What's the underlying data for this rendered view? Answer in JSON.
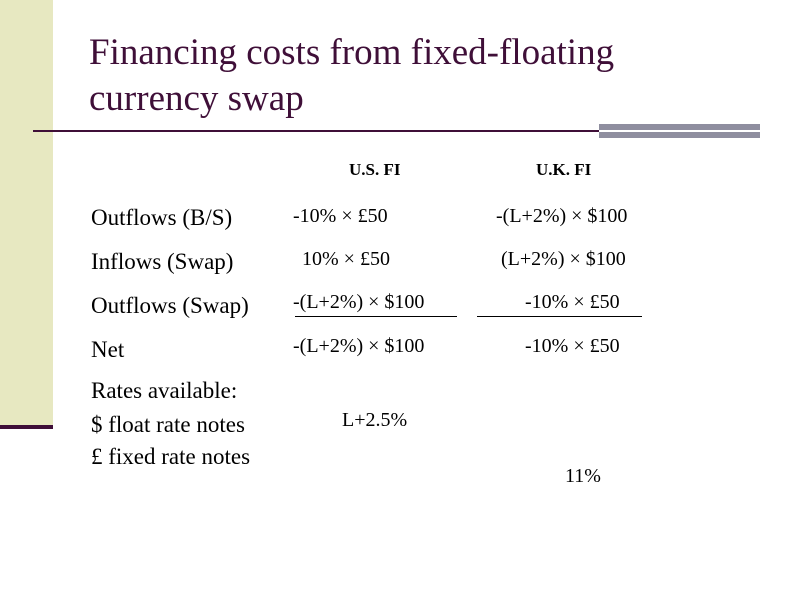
{
  "slide": {
    "title": "Financing costs from fixed-floating currency swap",
    "colors": {
      "title": "#3F0F38",
      "side_band": "#E7E8C1",
      "rule": "#3F0F38",
      "rule_block": "#8F8E9F"
    }
  },
  "table": {
    "columns": [
      "U.S. FI",
      "U.K. FI"
    ],
    "rows": [
      {
        "label": "Outflows (B/S)",
        "us": "-10% × £50",
        "uk": "-(L+2%) × $100"
      },
      {
        "label": "Inflows (Swap)",
        "us": "10% × £50",
        "uk": "(L+2%) × $100"
      },
      {
        "label": "Outflows (Swap)",
        "us": "-(L+2%) × $100",
        "uk": "-10% × £50"
      },
      {
        "label": "Net",
        "us": "-(L+2%) × $100",
        "uk": "-10% × £50"
      }
    ]
  },
  "rates": {
    "heading": "Rates available:",
    "items": [
      {
        "label": "$ float rate notes",
        "value": "L+2.5%"
      },
      {
        "label": "£ fixed rate notes",
        "value": "11%"
      }
    ]
  }
}
